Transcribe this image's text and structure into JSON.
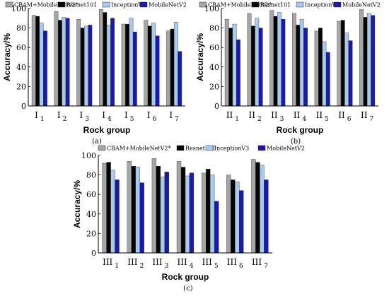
{
  "chart_data": [
    {
      "type": "bar",
      "panel_label": "(a)",
      "categories": [
        "I",
        "I",
        "I",
        "I",
        "I",
        "I",
        "I"
      ],
      "category_subs": [
        "1",
        "2",
        "3",
        "4",
        "5",
        "6",
        "7"
      ],
      "xlabel": "Rock group",
      "ylabel": "Accuracy/%",
      "ylim": [
        0,
        100
      ],
      "yticks": [
        "0",
        "20",
        "40",
        "60",
        "80",
        "100"
      ],
      "grid": false,
      "legend_position": "top",
      "series": [
        {
          "name": "CBAM+MobileNetV2*",
          "values": [
            93,
            97,
            89,
            99,
            84,
            88,
            77
          ]
        },
        {
          "name": "Resnet101",
          "values": [
            92,
            88,
            80,
            96,
            84,
            82,
            79
          ]
        },
        {
          "name": "InceptionV3",
          "values": [
            85,
            91,
            82,
            83,
            90,
            85,
            86
          ]
        },
        {
          "name": "MobileNetV2",
          "values": [
            77,
            90,
            83,
            90,
            76,
            72,
            56
          ]
        }
      ]
    },
    {
      "type": "bar",
      "panel_label": "(b)",
      "categories": [
        "II",
        "II",
        "II",
        "II",
        "II",
        "II",
        "II"
      ],
      "category_subs": [
        "1",
        "2",
        "3",
        "4",
        "5",
        "6",
        "7"
      ],
      "xlabel": "Rock group",
      "ylabel": "Accuracy/%",
      "ylim": [
        0,
        100
      ],
      "yticks": [
        "0",
        "20",
        "40",
        "60",
        "80",
        "100"
      ],
      "grid": false,
      "legend_position": "top",
      "series": [
        {
          "name": "CBAM+MobileNetV2*",
          "values": [
            89,
            95,
            98,
            95,
            77,
            87,
            99
          ]
        },
        {
          "name": "Resnet101",
          "values": [
            80,
            82,
            92,
            83,
            80,
            88,
            91
          ]
        },
        {
          "name": "InceptionV3",
          "values": [
            84,
            90,
            96,
            89,
            66,
            75,
            95
          ]
        },
        {
          "name": "MobileNetV2",
          "values": [
            68,
            80,
            89,
            80,
            55,
            67,
            93
          ]
        }
      ]
    },
    {
      "type": "bar",
      "panel_label": "(c)",
      "categories": [
        "III",
        "III",
        "III",
        "III",
        "III",
        "III",
        "III"
      ],
      "category_subs": [
        "1",
        "2",
        "3",
        "4",
        "5",
        "6",
        "7"
      ],
      "xlabel": "Rock group",
      "ylabel": "Accuracy/%",
      "ylim": [
        0,
        100
      ],
      "yticks": [
        "0",
        "20",
        "40",
        "60",
        "80",
        "100"
      ],
      "grid": false,
      "legend_position": "top",
      "series": [
        {
          "name": "CBAM+MobileNetV2*",
          "values": [
            92,
            94,
            97,
            94,
            82,
            80,
            96
          ]
        },
        {
          "name": "Resnet101",
          "values": [
            93,
            89,
            89,
            88,
            86,
            75,
            93
          ]
        },
        {
          "name": "InceptionV3",
          "values": [
            85,
            88,
            78,
            79,
            80,
            73,
            90
          ]
        },
        {
          "name": "MobileNetV2",
          "values": [
            75,
            72,
            83,
            82,
            53,
            64,
            75
          ]
        }
      ]
    }
  ],
  "colors": {
    "series": [
      "#a6a6a6",
      "#050505",
      "#a9c9ef",
      "#1a1aa8"
    ],
    "axis": "#000000",
    "bar_stroke": "#333333"
  }
}
